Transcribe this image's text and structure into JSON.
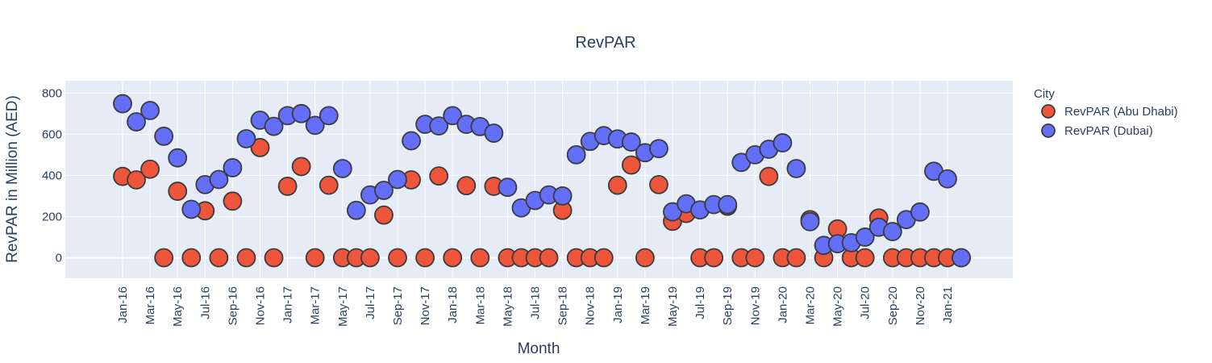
{
  "chart_data": {
    "type": "scatter",
    "title": "RevPAR",
    "xlabel": "Month",
    "ylabel": "RevPAR in Million (AED)",
    "ylim": [
      -100,
      860
    ],
    "yticks": [
      0,
      200,
      400,
      600,
      800
    ],
    "grid": true,
    "legend": {
      "title": "City",
      "placement": "right"
    },
    "x": [
      "Jan-16",
      "Feb-16",
      "Mar-16",
      "Apr-16",
      "May-16",
      "Jun-16",
      "Jul-16",
      "Aug-16",
      "Sep-16",
      "Oct-16",
      "Nov-16",
      "Dec-16",
      "Jan-17",
      "Feb-17",
      "Mar-17",
      "Apr-17",
      "May-17",
      "Jun-17",
      "Jul-17",
      "Aug-17",
      "Sep-17",
      "Oct-17",
      "Nov-17",
      "Dec-17",
      "Jan-18",
      "Feb-18",
      "Mar-18",
      "Apr-18",
      "May-18",
      "Jun-18",
      "Jul-18",
      "Aug-18",
      "Sep-18",
      "Oct-18",
      "Nov-18",
      "Dec-18",
      "Jan-19",
      "Feb-19",
      "Mar-19",
      "Apr-19",
      "May-19",
      "Jun-19",
      "Jul-19",
      "Aug-19",
      "Sep-19",
      "Oct-19",
      "Nov-19",
      "Dec-19",
      "Jan-20",
      "Feb-20",
      "Mar-20",
      "Apr-20",
      "May-20",
      "Jun-20",
      "Jul-20",
      "Aug-20",
      "Sep-20",
      "Oct-20",
      "Nov-20",
      "Dec-20",
      "Jan-21",
      "Feb-21"
    ],
    "xtick_labels": [
      "Jan-16",
      "Mar-16",
      "May-16",
      "Jul-16",
      "Sep-16",
      "Nov-16",
      "Jan-17",
      "Mar-17",
      "May-17",
      "Jul-17",
      "Sep-17",
      "Nov-17",
      "Jan-18",
      "Mar-18",
      "May-18",
      "Jul-18",
      "Sep-18",
      "Nov-18",
      "Jan-19",
      "Mar-19",
      "May-19",
      "Jul-19",
      "Sep-19",
      "Nov-19",
      "Jan-20",
      "Mar-20",
      "May-20",
      "Jul-20",
      "Sep-20",
      "Nov-20",
      "Jan-21"
    ],
    "series": [
      {
        "name": "RevPAR (Abu Dhabi)",
        "color": "#ef553b",
        "values": [
          395,
          378,
          430,
          0,
          323,
          0,
          228,
          0,
          275,
          0,
          535,
          0,
          347,
          443,
          0,
          352,
          0,
          0,
          0,
          207,
          0,
          378,
          0,
          397,
          0,
          350,
          0,
          347,
          0,
          0,
          0,
          0,
          230,
          0,
          0,
          0,
          352,
          450,
          0,
          355,
          177,
          215,
          0,
          0,
          250,
          0,
          0,
          395,
          0,
          0,
          185,
          0,
          140,
          0,
          0,
          193,
          0,
          0,
          0,
          0,
          0,
          0
        ]
      },
      {
        "name": "RevPAR (Dubai)",
        "color": "#636efa",
        "values": [
          748,
          660,
          715,
          590,
          485,
          235,
          355,
          380,
          437,
          578,
          668,
          638,
          690,
          700,
          643,
          690,
          433,
          230,
          305,
          327,
          380,
          568,
          648,
          640,
          690,
          648,
          637,
          605,
          342,
          242,
          278,
          305,
          300,
          500,
          565,
          593,
          577,
          562,
          510,
          530,
          223,
          262,
          232,
          258,
          258,
          463,
          500,
          527,
          558,
          433,
          175,
          60,
          68,
          73,
          100,
          148,
          127,
          185,
          222,
          420,
          383,
          0
        ]
      }
    ]
  }
}
